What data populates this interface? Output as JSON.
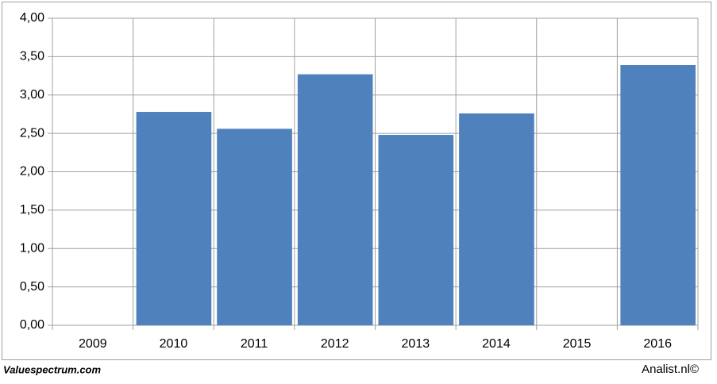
{
  "chart_data": {
    "type": "bar",
    "categories": [
      "2009",
      "2010",
      "2011",
      "2012",
      "2013",
      "2014",
      "2015",
      "2016"
    ],
    "values": [
      null,
      2.78,
      2.56,
      3.27,
      2.48,
      2.76,
      null,
      3.39
    ],
    "color": "#4f81bd",
    "ylim": [
      0,
      4
    ],
    "yticks": [
      {
        "value": 0,
        "label": "0,00"
      },
      {
        "value": 0.5,
        "label": "0,50"
      },
      {
        "value": 1,
        "label": "1,00"
      },
      {
        "value": 1.5,
        "label": "1,50"
      },
      {
        "value": 2,
        "label": "2,00"
      },
      {
        "value": 2.5,
        "label": "2,50"
      },
      {
        "value": 3,
        "label": "3,00"
      },
      {
        "value": 3.5,
        "label": "3,50"
      },
      {
        "value": 4,
        "label": "4,00"
      }
    ],
    "grid": true
  },
  "footer": {
    "left": "Valuespectrum.com",
    "right": "Analist.nl©"
  }
}
